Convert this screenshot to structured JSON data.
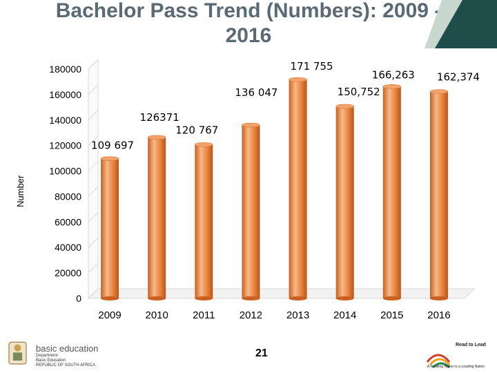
{
  "slide": {
    "title_line1": "Bachelor Pass Trend (Numbers): 2009 -",
    "title_line2": "2016",
    "page_number": "21"
  },
  "footer": {
    "dept_main": "basic education",
    "dept_line1": "Department:",
    "dept_line2": "Basic Education",
    "dept_line3": "REPUBLIC OF SOUTH AFRICA",
    "rtl_title": "Read to Lead",
    "rtl_tagline": "A Reading Nation is a Leading Nation"
  },
  "colors": {
    "bar_main": "#e8813a",
    "bar_light": "#f6b98a",
    "bar_dark": "#c9601f",
    "top_deco": "#1f4e4a"
  },
  "chart_data": {
    "type": "bar",
    "title": "Bachelor Pass Trend (Numbers): 2009 - 2016",
    "xlabel": "",
    "ylabel": "Number",
    "categories": [
      "2009",
      "2010",
      "2011",
      "2012",
      "2013",
      "2014",
      "2015",
      "2016"
    ],
    "values": [
      109697,
      126371,
      120767,
      136047,
      171755,
      150752,
      166263,
      162374
    ],
    "data_labels": [
      "109 697",
      "126371",
      "120 767",
      "136 047",
      "171 755",
      "150,752",
      "166,263",
      "162,374"
    ],
    "yticks": [
      "0",
      "20000",
      "40000",
      "60000",
      "80000",
      "100000",
      "120000",
      "140000",
      "160000",
      "180000"
    ],
    "ylim": [
      0,
      180000
    ],
    "grid": false,
    "legend": "none",
    "style": "3d-cylinder"
  }
}
